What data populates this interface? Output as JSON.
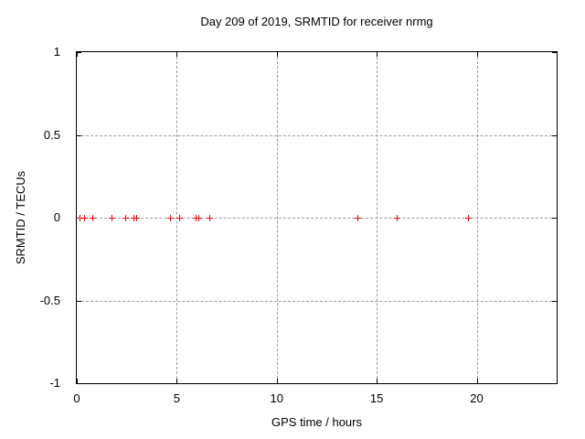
{
  "chart_data": {
    "type": "scatter",
    "title": "Day 209 of 2019, SRMTID for receiver nrmg",
    "xlabel": "GPS time / hours",
    "ylabel": "SRMTID / TECUs",
    "xlim": [
      0,
      24
    ],
    "ylim": [
      -1,
      1
    ],
    "x_ticks": [
      {
        "value": 0,
        "label": "0"
      },
      {
        "value": 5,
        "label": "5"
      },
      {
        "value": 10,
        "label": "10"
      },
      {
        "value": 15,
        "label": "15"
      },
      {
        "value": 20,
        "label": "20"
      }
    ],
    "y_ticks": [
      {
        "value": 1,
        "label": "1"
      },
      {
        "value": 0.5,
        "label": "0.5"
      },
      {
        "value": 0,
        "label": "0"
      },
      {
        "value": -0.5,
        "label": "-0.5"
      },
      {
        "value": -1,
        "label": "-1"
      }
    ],
    "grid": true,
    "legend": "none",
    "marker": "plus",
    "marker_color": "#ff0000",
    "grid_color": "#9b9b9b",
    "axis_color": "#000000",
    "background_color": "#ffffff",
    "series": [
      {
        "name": "SRMTID",
        "x": [
          0.15,
          0.4,
          0.8,
          1.75,
          2.45,
          2.85,
          3.0,
          4.7,
          5.15,
          5.95,
          6.1,
          6.65,
          14.05,
          16.0,
          19.6
        ],
        "y": [
          0,
          0,
          0,
          0,
          0,
          0,
          0,
          0,
          0,
          0,
          0,
          0,
          0,
          0,
          0
        ]
      }
    ]
  }
}
